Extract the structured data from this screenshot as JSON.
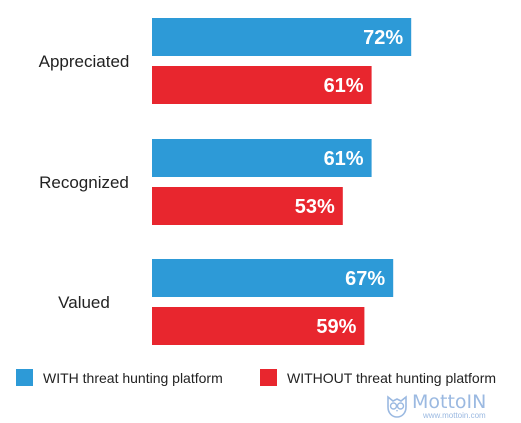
{
  "chart_data": {
    "type": "bar",
    "orientation": "horizontal",
    "categories": [
      "Appreciated",
      "Recognized",
      "Valued"
    ],
    "series": [
      {
        "name": "WITH threat hunting platform",
        "color": "#2D9AD7",
        "values": [
          72,
          61,
          67
        ],
        "labels": [
          "72%",
          "61%",
          "67%"
        ]
      },
      {
        "name": "WITHOUT threat hunting platform",
        "color": "#E8262E",
        "values": [
          61,
          53,
          59
        ],
        "labels": [
          "61%",
          "53%",
          "59%"
        ]
      }
    ],
    "title": "",
    "xlabel": "",
    "ylabel": "",
    "value_unit": "%",
    "grid": false,
    "legend_position": "bottom"
  },
  "legend": {
    "with_label": "WITH threat hunting platform",
    "without_label": "WITHOUT threat hunting platform",
    "with_color": "#2D9AD7",
    "without_color": "#E8262E"
  },
  "watermark": {
    "name": "MottoIN",
    "url": "www.mottoin.com",
    "icon": "owl-logo-icon"
  }
}
